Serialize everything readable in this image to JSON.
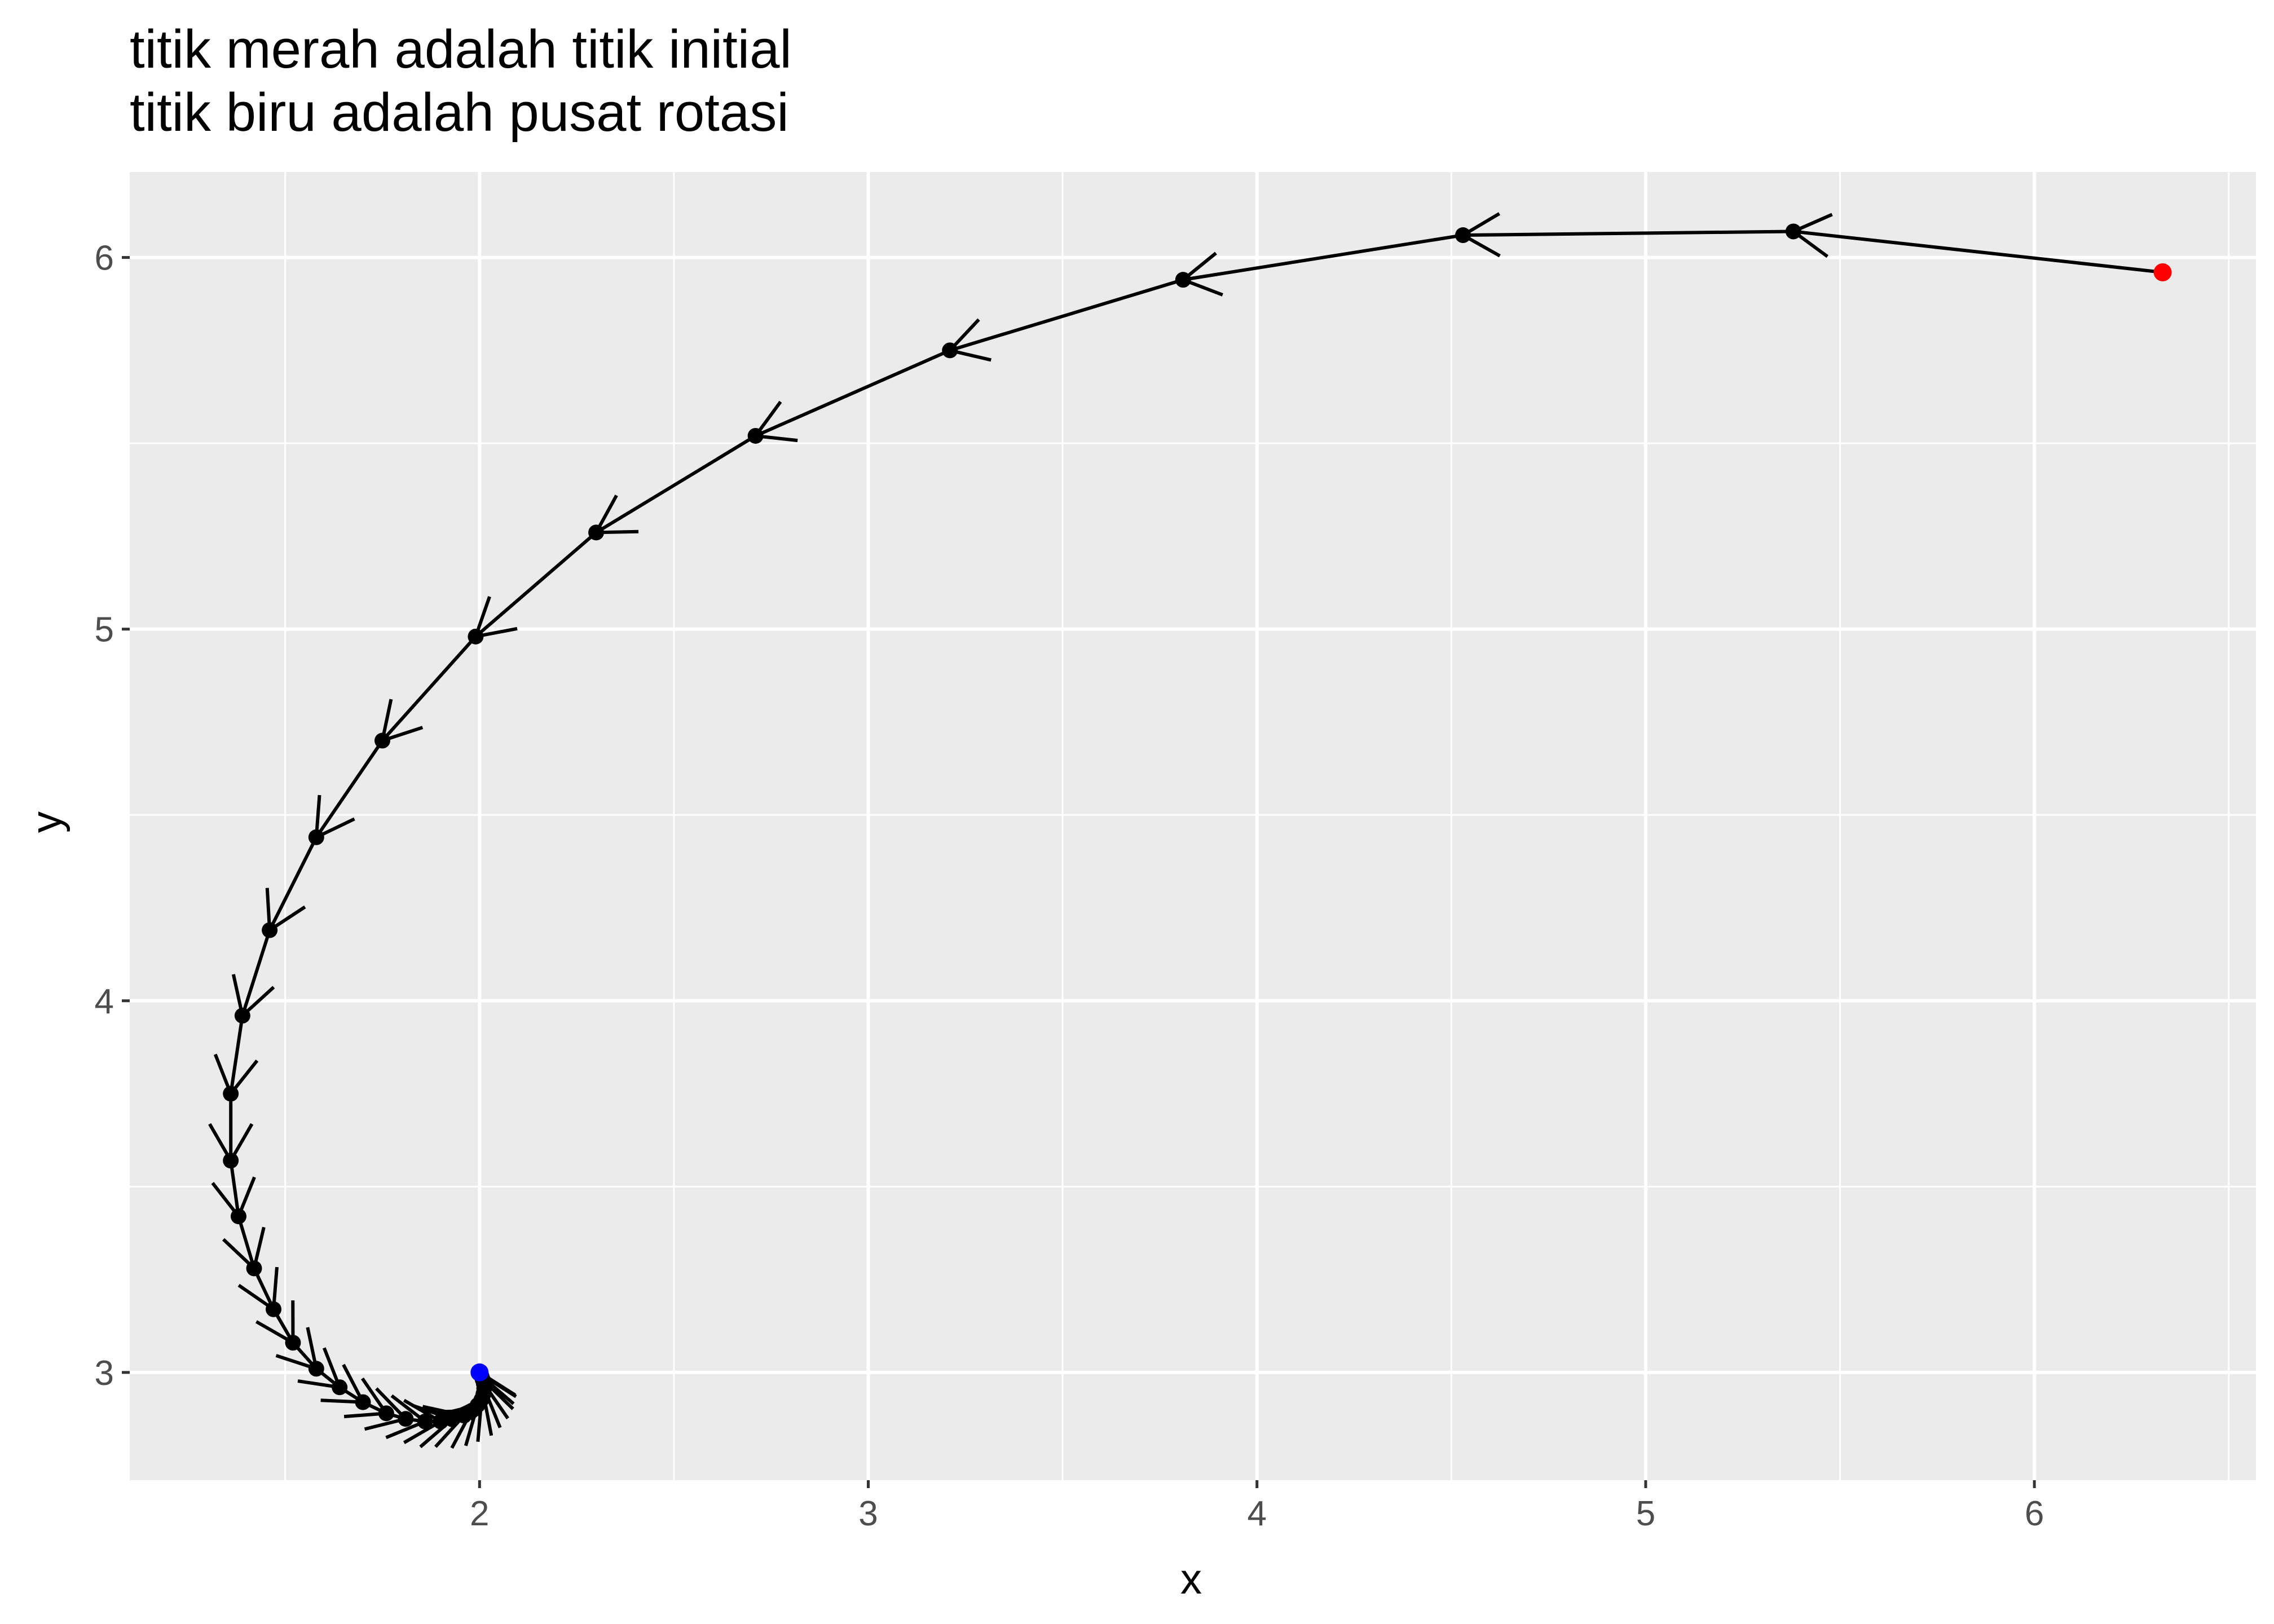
{
  "chart_data": {
    "type": "scatter",
    "title_lines": [
      "titik merah adalah titik initial",
      "titik biru adalah pusat rotasi"
    ],
    "xlabel": "x",
    "ylabel": "y",
    "xlim": [
      1.1,
      6.57
    ],
    "ylim": [
      2.71,
      6.23
    ],
    "xticks": [
      2,
      3,
      4,
      5,
      6
    ],
    "yticks": [
      3,
      4,
      5,
      6
    ],
    "grid": true,
    "background_color": "#ebebeb",
    "grid_color": "#ffffff",
    "path_color": "#000000",
    "initial_point_color": "#ff0000",
    "center_point_color": "#0000ff",
    "initial_point": {
      "x": 6.33,
      "y": 5.96
    },
    "center_point": {
      "x": 2.0,
      "y": 3.0
    },
    "series": [
      {
        "points": [
          {
            "x": 6.33,
            "y": 5.96
          },
          {
            "x": 5.38,
            "y": 6.07
          },
          {
            "x": 4.53,
            "y": 6.06
          },
          {
            "x": 3.81,
            "y": 5.94
          },
          {
            "x": 3.21,
            "y": 5.75
          },
          {
            "x": 2.71,
            "y": 5.52
          },
          {
            "x": 2.3,
            "y": 5.26
          },
          {
            "x": 1.99,
            "y": 4.98
          },
          {
            "x": 1.75,
            "y": 4.7
          },
          {
            "x": 1.58,
            "y": 4.44
          },
          {
            "x": 1.46,
            "y": 4.19
          },
          {
            "x": 1.39,
            "y": 3.96
          },
          {
            "x": 1.36,
            "y": 3.75
          },
          {
            "x": 1.36,
            "y": 3.57
          },
          {
            "x": 1.38,
            "y": 3.42
          },
          {
            "x": 1.42,
            "y": 3.28
          },
          {
            "x": 1.47,
            "y": 3.17
          },
          {
            "x": 1.52,
            "y": 3.08
          },
          {
            "x": 1.58,
            "y": 3.01
          },
          {
            "x": 1.64,
            "y": 2.96
          },
          {
            "x": 1.7,
            "y": 2.92
          },
          {
            "x": 1.76,
            "y": 2.89
          },
          {
            "x": 1.81,
            "y": 2.875
          },
          {
            "x": 1.86,
            "y": 2.868
          },
          {
            "x": 1.9,
            "y": 2.868
          },
          {
            "x": 1.93,
            "y": 2.874
          },
          {
            "x": 1.96,
            "y": 2.884
          },
          {
            "x": 1.98,
            "y": 2.897
          },
          {
            "x": 1.995,
            "y": 2.912
          },
          {
            "x": 2.005,
            "y": 2.927
          },
          {
            "x": 2.01,
            "y": 2.942
          },
          {
            "x": 2.012,
            "y": 2.957
          },
          {
            "x": 2.011,
            "y": 2.97
          },
          {
            "x": 2.008,
            "y": 2.981
          },
          {
            "x": 2.005,
            "y": 2.99
          },
          {
            "x": 2.002,
            "y": 2.996
          },
          {
            "x": 2.0,
            "y": 3.0
          }
        ]
      }
    ]
  }
}
